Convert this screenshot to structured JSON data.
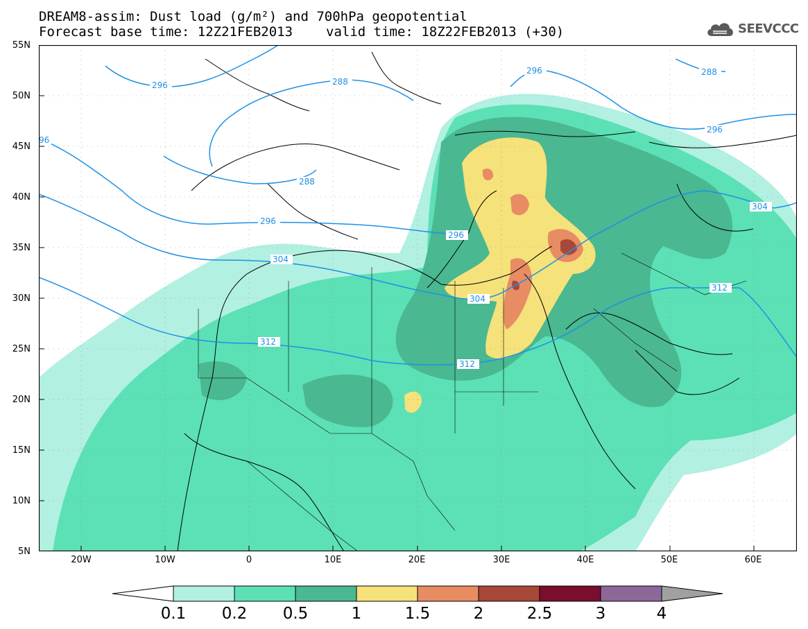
{
  "title_line1": "DREAM8-assim: Dust load (g/m²) and 700hPa geopotential",
  "title_line2_left": "Forecast base time: 12Z21FEB2013",
  "title_line2_right": "valid time: 18Z22FEB2013 (+30)",
  "logo_text": "SEEVCCC",
  "logo_icon": "cloud-icon",
  "lat_labels": [
    "55N",
    "50N",
    "45N",
    "40N",
    "35N",
    "30N",
    "25N",
    "20N",
    "15N",
    "10N",
    "5N"
  ],
  "lon_labels": [
    "20W",
    "10W",
    "0",
    "10E",
    "20E",
    "30E",
    "40E",
    "50E",
    "60E"
  ],
  "contour_labels": [
    "296",
    "288",
    "96",
    "288",
    "296",
    "304",
    "312",
    "304",
    "296",
    "296",
    "288",
    "296",
    "304",
    "312",
    "312"
  ],
  "colorbar": {
    "ticks": [
      "0.1",
      "0.2",
      "0.5",
      "1",
      "1.5",
      "2",
      "2.5",
      "3",
      "4"
    ],
    "colors": [
      "#b2f0e1",
      "#5ce0b5",
      "#4ab891",
      "#f5e27a",
      "#e88c64",
      "#a84838",
      "#7a0e2e",
      "#8c6898",
      "#a0a0a0"
    ],
    "under_color": "#ffffff"
  },
  "map": {
    "lon_range": [
      -25,
      65
    ],
    "lat_range": [
      5,
      55
    ],
    "contour_color": "#1e90e6",
    "coastline_color": "#000000"
  }
}
